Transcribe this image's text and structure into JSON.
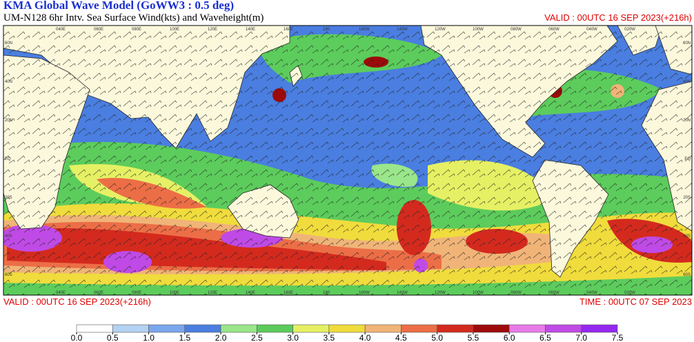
{
  "header": {
    "title": "KMA  Global Wave Model (GoWW3 : 0.5 deg)",
    "subtitle": "UM-N128  6hr Intv. Sea Surface Wind(kts) and Waveheight(m)",
    "valid_top": "VALID : 00UTC 16 SEP 2023(+216h)"
  },
  "footer": {
    "valid": "VALID : 00UTC 16 SEP 2023(+216h)",
    "time": "TIME : 00UTC 07 SEP 2023"
  },
  "map": {
    "lon_labels": [
      "040E",
      "060E",
      "080E",
      "100E",
      "120E",
      "140E",
      "160E",
      "180",
      "160W",
      "140W",
      "120W",
      "100W",
      "080W",
      "060W",
      "040W",
      "020W"
    ],
    "lat_labels": [
      "60N",
      "40N",
      "20N",
      "EQ",
      "20S",
      "40S",
      "60S"
    ]
  },
  "colorbar": {
    "ticks": [
      {
        "value": 0,
        "label": "0.0"
      },
      {
        "value": 0.5,
        "label": "0.5"
      },
      {
        "value": 1,
        "label": "1.0"
      },
      {
        "value": 1.5,
        "label": "1.5"
      },
      {
        "value": 2,
        "label": "2.0"
      },
      {
        "value": 2.5,
        "label": "2.5"
      },
      {
        "value": 3,
        "label": "3.0"
      },
      {
        "value": 3.5,
        "label": "3.5"
      },
      {
        "value": 4,
        "label": "4.0"
      },
      {
        "value": 4.5,
        "label": "4.5"
      },
      {
        "value": 5,
        "label": "5.0"
      },
      {
        "value": 5.5,
        "label": "5.5"
      },
      {
        "value": 6,
        "label": "6.0"
      },
      {
        "value": 6.5,
        "label": "6.5"
      },
      {
        "value": 7,
        "label": "7.0"
      },
      {
        "value": 7.5,
        "label": "7.5"
      }
    ],
    "colors": [
      "#ffffff",
      "#b4d2f2",
      "#7aa6ec",
      "#4a7ee0",
      "#9ae68a",
      "#5ccc5c",
      "#e6f064",
      "#f0dc3c",
      "#f0b478",
      "#ec6e46",
      "#d42a1e",
      "#9e0a0a",
      "#e87ae8",
      "#c04ae6",
      "#9428f0"
    ]
  }
}
